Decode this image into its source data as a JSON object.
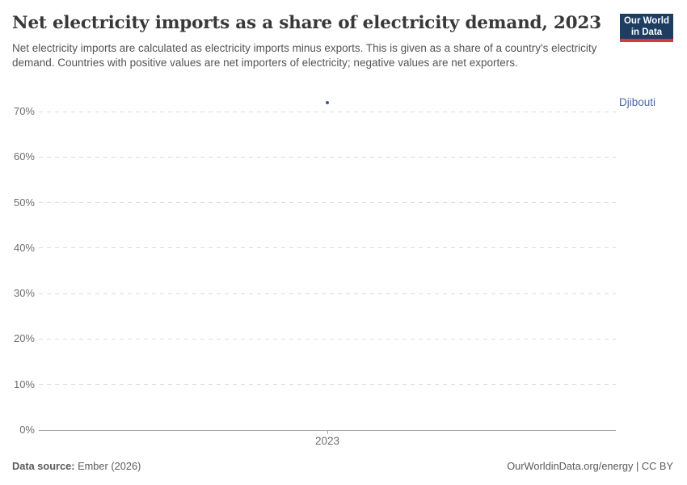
{
  "header": {
    "title": "Net electricity imports as a share of electricity demand, 2023",
    "subtitle": "Net electricity imports are calculated as electricity imports minus exports. This is given as a share of a country's electricity demand. Countries with positive values are net importers of electricity; negative values are net exporters.",
    "logo": {
      "line1": "Our World",
      "line2": "in Data"
    }
  },
  "chart_data": {
    "type": "scatter",
    "title": "Net electricity imports as a share of electricity demand, 2023",
    "x": [
      "2023"
    ],
    "series": [
      {
        "name": "Djibouti",
        "values": [
          72
        ]
      }
    ],
    "xlabel": "",
    "ylabel": "",
    "ylim": [
      0,
      70
    ],
    "y_ticks": [
      0,
      10,
      20,
      30,
      40,
      50,
      60,
      70
    ],
    "y_tick_suffix": "%",
    "grid": "horizontal dashed gridlines, solid baseline at 0%",
    "legend": "entity label at right of plot"
  },
  "footer": {
    "source_label": "Data source:",
    "source_value": "Ember (2026)",
    "url": "OurWorldinData.org/energy",
    "separator": " | ",
    "license": "CC BY"
  },
  "colors": {
    "series_point": "#3d5c96",
    "entity_label": "#4a69a8",
    "logo_bg": "#1d3d63",
    "logo_stripe": "#d7373f",
    "gridline": "#dcdcdc",
    "axis_line": "#a3a3a3",
    "tick_label": "#6e6e6e",
    "title_text": "#383838",
    "subtitle_text": "#555555",
    "footer_text": "#5b5b5b"
  }
}
